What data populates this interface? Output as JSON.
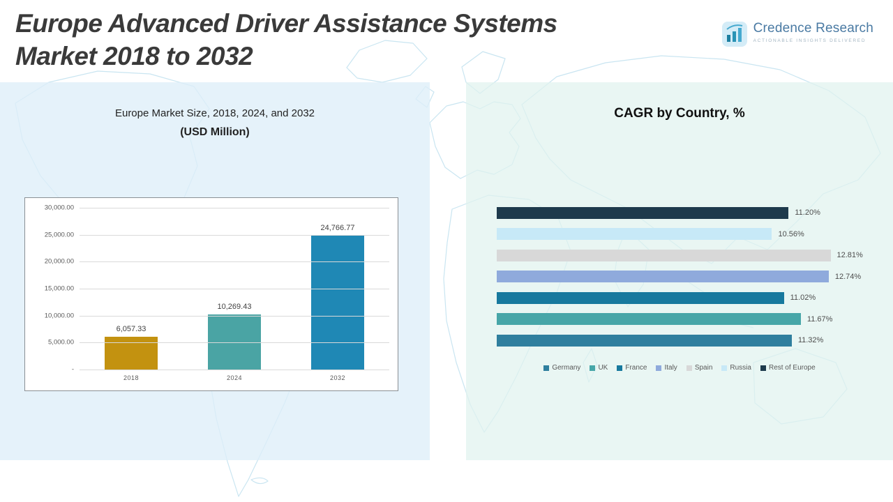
{
  "header": {
    "title_line1": "Europe Advanced Driver Assistance Systems",
    "title_line2": "Market 2018 to 2032"
  },
  "logo": {
    "name": "Credence Research",
    "tagline": "Actionable Insights Delivered"
  },
  "left_chart": {
    "title_line1": "Europe Market Size, 2018, 2024, and 2032",
    "title_line2": "(USD Million)"
  },
  "right_chart": {
    "title": "CAGR by Country, %"
  },
  "chart_data": [
    {
      "type": "bar",
      "title": "Europe Market Size, 2018, 2024, and 2032 (USD Million)",
      "categories": [
        "2018",
        "2024",
        "2032"
      ],
      "values": [
        6057.33,
        10269.43,
        24766.77
      ],
      "value_labels": [
        "6,057.33",
        "10,269.43",
        "24,766.77"
      ],
      "colors": [
        "#c39210",
        "#4aa4a4",
        "#1f88b5"
      ],
      "xlabel": "",
      "ylabel": "",
      "ylim": [
        0,
        30000
      ],
      "ytick_labels": [
        "30,000.00",
        "25,000.00",
        "20,000.00",
        "15,000.00",
        "10,000.00",
        "5,000.00",
        "-"
      ],
      "grid": true,
      "legend_position": "none"
    },
    {
      "type": "bar-horizontal",
      "title": "CAGR by Country, %",
      "categories": [
        "Rest of Europe",
        "Russia",
        "Spain",
        "Italy",
        "France",
        "UK",
        "Germany"
      ],
      "values": [
        11.2,
        10.56,
        12.81,
        12.74,
        11.02,
        11.67,
        11.32
      ],
      "value_labels": [
        "11.20%",
        "10.56%",
        "12.81%",
        "12.74%",
        "11.02%",
        "11.67%",
        "11.32%"
      ],
      "colors": [
        "#1e3a4c",
        "#c7e9f7",
        "#d8d8d8",
        "#8faadc",
        "#17799e",
        "#47a6a8",
        "#2f7f9e"
      ],
      "xlim": [
        0,
        13.5
      ],
      "grid": false,
      "legend_position": "bottom",
      "legend": [
        {
          "label": "Germany",
          "color": "#2f7f9e"
        },
        {
          "label": "UK",
          "color": "#47a6a8"
        },
        {
          "label": "France",
          "color": "#17799e"
        },
        {
          "label": "Italy",
          "color": "#8faadc"
        },
        {
          "label": "Spain",
          "color": "#d8d8d8"
        },
        {
          "label": "Russia",
          "color": "#c7e9f7"
        },
        {
          "label": "Rest of Europe",
          "color": "#1e3a4c"
        }
      ]
    }
  ]
}
